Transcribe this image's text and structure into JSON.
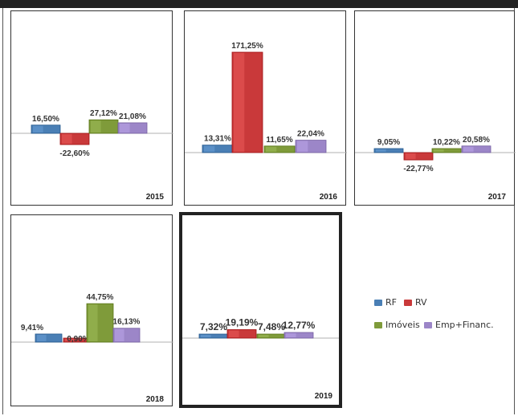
{
  "colors": {
    "RF": "#4a7fb5",
    "RV": "#c9393a",
    "Imoveis": "#7f9b3a",
    "EmpFinanc": "#9c86c8"
  },
  "legend": {
    "items": [
      {
        "key": "RF",
        "label": "RF"
      },
      {
        "key": "RV",
        "label": "RV"
      },
      {
        "key": "Imoveis",
        "label": "Imóveis"
      },
      {
        "key": "EmpFinanc",
        "label": "Emp+Financ."
      }
    ]
  },
  "chart_data": [
    {
      "type": "bar",
      "year": "2015",
      "categories": [
        "RF",
        "RV",
        "Imoveis",
        "EmpFinanc"
      ],
      "values": [
        16.5,
        -22.6,
        27.12,
        21.08
      ],
      "labels": [
        "16,50%",
        "-22,60%",
        "27,12%",
        "21,08%"
      ]
    },
    {
      "type": "bar",
      "year": "2016",
      "categories": [
        "RF",
        "RV",
        "Imoveis",
        "EmpFinanc"
      ],
      "values": [
        13.31,
        171.25,
        11.65,
        22.04
      ],
      "labels": [
        "13,31%",
        "171,25%",
        "11,65%",
        "22,04%"
      ]
    },
    {
      "type": "bar",
      "year": "2017",
      "categories": [
        "RF",
        "RV",
        "Imoveis",
        "EmpFinanc"
      ],
      "values": [
        9.05,
        -22.77,
        10.22,
        20.58
      ],
      "labels": [
        "9,05%",
        "-22,77%",
        "10,22%",
        "20,58%"
      ]
    },
    {
      "type": "bar",
      "year": "2018",
      "categories": [
        "RF",
        "RV",
        "Imoveis",
        "EmpFinanc"
      ],
      "values": [
        9.41,
        0.9,
        44.75,
        16.13
      ],
      "labels": [
        "9,41%",
        "0,90%",
        "44,75%",
        "16,13%"
      ]
    },
    {
      "type": "bar",
      "year": "2019",
      "categories": [
        "RF",
        "RV",
        "Imoveis",
        "EmpFinanc"
      ],
      "values": [
        7.32,
        19.19,
        7.48,
        12.77
      ],
      "labels": [
        "7,32%",
        "19,19%",
        "7,48%",
        "12,77%"
      ]
    }
  ]
}
